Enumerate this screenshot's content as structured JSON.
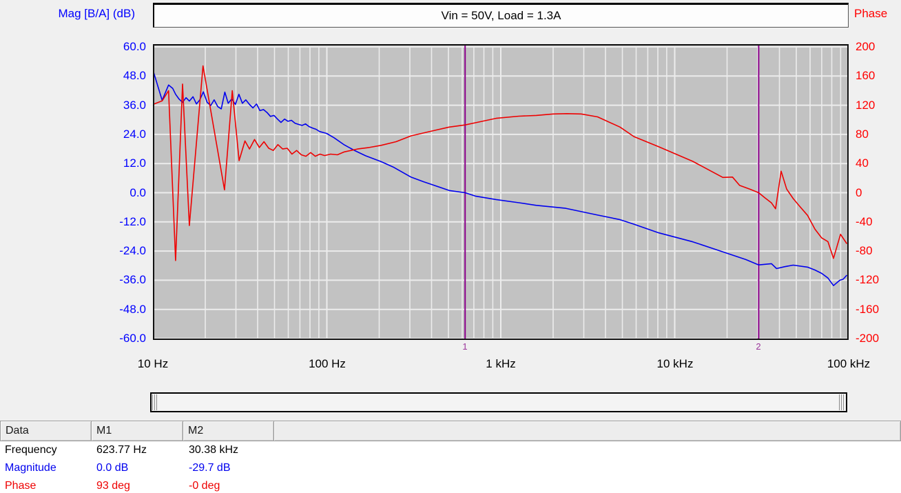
{
  "header": {
    "mag_axis_label": "Mag [B/A] (dB)",
    "title": "Vin = 50V, Load = 1.3A",
    "phase_axis_label": "Phase"
  },
  "chart_data": {
    "type": "line",
    "title": "Vin = 50V, Load = 1.3A",
    "plot_background": "#c2c2c2",
    "grid_color": "#ececec",
    "border_color": "#111111",
    "x_axis": {
      "scale": "log",
      "unit": "Hz",
      "min": 10,
      "max": 100000,
      "tick_labels": [
        "10 Hz",
        "100 Hz",
        "1 kHz",
        "10 kHz",
        "100 kHz"
      ],
      "grid": true
    },
    "y_axis_left": {
      "name": "Magnitude (dB)",
      "min": -60,
      "max": 60,
      "color": "#0000ff",
      "tick_labels": [
        "60.0",
        "48.0",
        "36.0",
        "24.0",
        "12.0",
        "0.0",
        "-12.0",
        "-24.0",
        "-36.0",
        "-48.0",
        "-60.0"
      ]
    },
    "y_axis_right": {
      "name": "Phase (deg)",
      "min": -200,
      "max": 200,
      "color": "#ff0000",
      "tick_labels": [
        "200",
        "160",
        "120",
        "80",
        "40",
        "0",
        "-40",
        "-80",
        "-120",
        "-160",
        "-200"
      ]
    },
    "markers": [
      {
        "id": "1",
        "freq_hz": 623.77,
        "line_color": "#8b008b",
        "label_color": "#993399"
      },
      {
        "id": "2",
        "freq_hz": 30380,
        "line_color": "#8b008b",
        "label_color": "#993399"
      }
    ],
    "series": [
      {
        "name": "magnitude",
        "axis": "left",
        "color": "#0000ee",
        "points": [
          [
            10,
            50.5
          ],
          [
            11.3,
            38
          ],
          [
            12.3,
            44.3
          ],
          [
            13,
            42.9
          ],
          [
            13.5,
            40.5
          ],
          [
            14.1,
            38.6
          ],
          [
            14.8,
            37.2
          ],
          [
            15.5,
            39.1
          ],
          [
            16.2,
            37.7
          ],
          [
            17,
            39.5
          ],
          [
            17.8,
            36.5
          ],
          [
            18.6,
            38.2
          ],
          [
            19.5,
            41.5
          ],
          [
            20.5,
            37.2
          ],
          [
            21.5,
            35.9
          ],
          [
            22.5,
            38.2
          ],
          [
            23.6,
            35.4
          ],
          [
            24.7,
            34.5
          ],
          [
            25.9,
            41.4
          ],
          [
            27.1,
            36.8
          ],
          [
            28.4,
            38.6
          ],
          [
            29.8,
            36.3
          ],
          [
            31.2,
            40.5
          ],
          [
            32.7,
            36.8
          ],
          [
            34.2,
            38.2
          ],
          [
            35.9,
            36.3
          ],
          [
            37.6,
            34.9
          ],
          [
            39.4,
            36.5
          ],
          [
            41.2,
            33.8
          ],
          [
            43.2,
            34.2
          ],
          [
            45.3,
            33.0
          ],
          [
            47.4,
            31.4
          ],
          [
            49.7,
            31.8
          ],
          [
            52,
            30.3
          ],
          [
            54.5,
            28.9
          ],
          [
            57.1,
            30.3
          ],
          [
            59.8,
            29.4
          ],
          [
            62.6,
            29.8
          ],
          [
            65.6,
            28.6
          ],
          [
            68.7,
            28.1
          ],
          [
            72,
            27.7
          ],
          [
            75.4,
            28.3
          ],
          [
            79,
            27.2
          ],
          [
            82.8,
            26.6
          ],
          [
            86.7,
            26.1
          ],
          [
            90.8,
            25.2
          ],
          [
            95.1,
            24.8
          ],
          [
            99.7,
            24.4
          ],
          [
            110,
            22.6
          ],
          [
            126,
            19.7
          ],
          [
            145,
            17.3
          ],
          [
            167,
            15.2
          ],
          [
            205,
            12.8
          ],
          [
            240,
            10.6
          ],
          [
            305,
            6.4
          ],
          [
            360,
            4.5
          ],
          [
            408,
            3.2
          ],
          [
            505,
            0.9
          ],
          [
            623.77,
            0.0
          ],
          [
            715,
            -1.4
          ],
          [
            940,
            -2.8
          ],
          [
            1270,
            -4.1
          ],
          [
            1600,
            -5.2
          ],
          [
            2360,
            -6.4
          ],
          [
            3600,
            -9.2
          ],
          [
            4800,
            -11.0
          ],
          [
            5800,
            -12.9
          ],
          [
            8100,
            -16.5
          ],
          [
            12700,
            -20.2
          ],
          [
            18900,
            -24.3
          ],
          [
            25600,
            -27.5
          ],
          [
            30380,
            -29.7
          ],
          [
            36000,
            -29.2
          ],
          [
            38500,
            -31.2
          ],
          [
            43000,
            -30.4
          ],
          [
            48000,
            -29.8
          ],
          [
            58000,
            -30.6
          ],
          [
            64000,
            -31.8
          ],
          [
            70000,
            -33.2
          ],
          [
            76000,
            -35.1
          ],
          [
            81800,
            -38.2
          ],
          [
            89000,
            -36.0
          ],
          [
            93000,
            -35.6
          ],
          [
            97700,
            -33.9
          ]
        ]
      },
      {
        "name": "phase",
        "axis": "right",
        "color": "#ee0000",
        "points": [
          [
            10,
            121
          ],
          [
            11.3,
            126
          ],
          [
            12.3,
            140
          ],
          [
            13.5,
            -93
          ],
          [
            14.8,
            149
          ],
          [
            16.2,
            -45
          ],
          [
            19.4,
            174
          ],
          [
            25.8,
            4
          ],
          [
            28.6,
            140
          ],
          [
            31.3,
            44
          ],
          [
            33.8,
            71
          ],
          [
            35.9,
            60
          ],
          [
            38.4,
            73
          ],
          [
            40.9,
            62
          ],
          [
            43.5,
            70
          ],
          [
            46.3,
            61
          ],
          [
            49.2,
            58
          ],
          [
            52.3,
            66
          ],
          [
            55.7,
            60
          ],
          [
            59.2,
            61
          ],
          [
            63,
            53
          ],
          [
            67,
            58
          ],
          [
            71.3,
            52
          ],
          [
            75.8,
            50
          ],
          [
            80.7,
            55
          ],
          [
            85.8,
            50
          ],
          [
            91.3,
            53
          ],
          [
            97.1,
            51
          ],
          [
            105,
            53
          ],
          [
            115,
            52
          ],
          [
            126,
            56
          ],
          [
            150,
            60
          ],
          [
            175,
            62
          ],
          [
            205,
            65
          ],
          [
            250,
            70
          ],
          [
            305,
            78
          ],
          [
            408,
            85
          ],
          [
            505,
            90
          ],
          [
            623.77,
            93
          ],
          [
            715,
            96
          ],
          [
            940,
            102
          ],
          [
            1270,
            105
          ],
          [
            1600,
            106
          ],
          [
            2000,
            108
          ],
          [
            2400,
            108.5
          ],
          [
            2900,
            108
          ],
          [
            3600,
            104
          ],
          [
            4850,
            90
          ],
          [
            5830,
            77
          ],
          [
            8100,
            63
          ],
          [
            12700,
            43
          ],
          [
            18900,
            21
          ],
          [
            21500,
            21.5
          ],
          [
            23600,
            10
          ],
          [
            27000,
            5
          ],
          [
            30380,
            0
          ],
          [
            33000,
            -7
          ],
          [
            36000,
            -14
          ],
          [
            38000,
            -22
          ],
          [
            40900,
            29.5
          ],
          [
            44000,
            5
          ],
          [
            48000,
            -8
          ],
          [
            52000,
            -18
          ],
          [
            58000,
            -31
          ],
          [
            64000,
            -50
          ],
          [
            70000,
            -62
          ],
          [
            76000,
            -67
          ],
          [
            81800,
            -90
          ],
          [
            89800,
            -57
          ],
          [
            97700,
            -70
          ]
        ]
      }
    ]
  },
  "table": {
    "columns": [
      "Data",
      "M1",
      "M2",
      ""
    ],
    "rows": [
      {
        "label": "Frequency",
        "m1": "623.77 Hz",
        "m2": "30.38 kHz",
        "color": "#000000"
      },
      {
        "label": "Magnitude",
        "m1": "0.0 dB",
        "m2": "-29.7 dB",
        "color": "#0000ee"
      },
      {
        "label": "Phase",
        "m1": "93 deg",
        "m2": "-0 deg",
        "color": "#ee0000"
      }
    ]
  }
}
